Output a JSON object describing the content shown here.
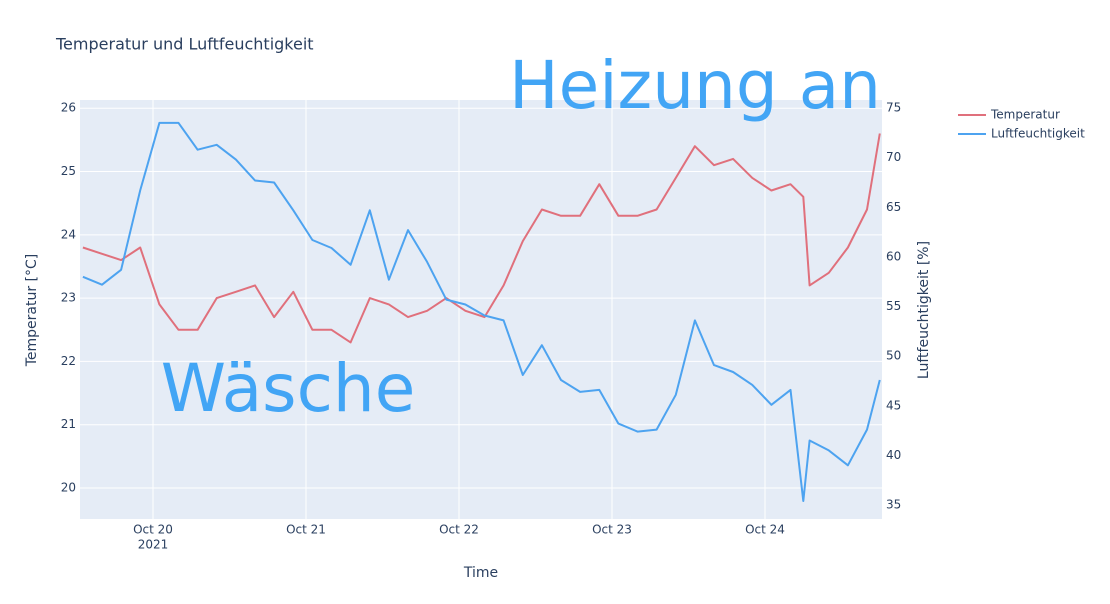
{
  "chart_data": {
    "type": "line",
    "title": "Temperatur und Luftfeuchtigkeit",
    "x_label": "Time",
    "y_label": "Temperatur [°C]",
    "y2_label": "Luftfeuchtigkeit [%]",
    "x_year_label": "2021",
    "annotations": [
      "Heizung an",
      "Wäsche"
    ],
    "annotation_color": "#42a5f5",
    "x": [
      "2021-10-19T13:00",
      "2021-10-19T16:00",
      "2021-10-19T19:00",
      "2021-10-19T22:00",
      "2021-10-20T01:00",
      "2021-10-20T04:00",
      "2021-10-20T07:00",
      "2021-10-20T10:00",
      "2021-10-20T13:00",
      "2021-10-20T16:00",
      "2021-10-20T19:00",
      "2021-10-20T22:00",
      "2021-10-21T01:00",
      "2021-10-21T04:00",
      "2021-10-21T07:00",
      "2021-10-21T10:00",
      "2021-10-21T13:00",
      "2021-10-21T16:00",
      "2021-10-21T19:00",
      "2021-10-21T22:00",
      "2021-10-22T01:00",
      "2021-10-22T04:00",
      "2021-10-22T07:00",
      "2021-10-22T10:00",
      "2021-10-22T13:00",
      "2021-10-22T16:00",
      "2021-10-22T19:00",
      "2021-10-22T22:00",
      "2021-10-23T01:00",
      "2021-10-23T04:00",
      "2021-10-23T07:00",
      "2021-10-23T10:00",
      "2021-10-23T13:00",
      "2021-10-23T16:00",
      "2021-10-23T19:00",
      "2021-10-23T22:00",
      "2021-10-24T01:00",
      "2021-10-24T04:00",
      "2021-10-24T06:00",
      "2021-10-24T07:00",
      "2021-10-24T10:00",
      "2021-10-24T13:00",
      "2021-10-24T16:00",
      "2021-10-24T18:00"
    ],
    "series": [
      {
        "name": "Temperatur",
        "color": "#e0707c",
        "values": [
          23.8,
          23.7,
          23.6,
          23.8,
          22.9,
          22.5,
          22.5,
          23.0,
          23.1,
          23.2,
          22.7,
          23.1,
          22.5,
          22.5,
          22.3,
          23.0,
          22.9,
          22.7,
          22.8,
          23.0,
          22.8,
          22.7,
          23.2,
          23.9,
          24.4,
          24.3,
          24.3,
          24.8,
          24.3,
          24.3,
          24.4,
          24.9,
          25.4,
          25.1,
          25.2,
          24.9,
          24.7,
          24.8,
          24.6,
          23.2,
          23.4,
          23.8,
          24.4,
          25.6
        ]
      },
      {
        "name": "Luftfeuchtigkeit",
        "color": "#4da3f0",
        "axis": "y2",
        "values": [
          58,
          57.2,
          58.7,
          66.7,
          73.5,
          73.5,
          70.8,
          71.3,
          69.8,
          67.7,
          67.5,
          64.7,
          61.7,
          60.9,
          59.2,
          64.7,
          57.7,
          62.7,
          59.5,
          55.7,
          55.2,
          54.1,
          53.6,
          48.1,
          51.1,
          47.6,
          46.4,
          46.6,
          43.2,
          42.4,
          42.6,
          46.1,
          53.6,
          49.1,
          48.4,
          47.1,
          45.1,
          46.6,
          35.4,
          41.5,
          40.5,
          39.0,
          42.6,
          47.6
        ]
      }
    ],
    "xlim": [
      "2021-10-19T12:33",
      "2021-10-24T18:21"
    ],
    "xticks": [
      {
        "value": "2021-10-20T00:00",
        "label": "Oct 20"
      },
      {
        "value": "2021-10-21T00:00",
        "label": "Oct 21"
      },
      {
        "value": "2021-10-22T00:00",
        "label": "Oct 22"
      },
      {
        "value": "2021-10-23T00:00",
        "label": "Oct 23"
      },
      {
        "value": "2021-10-24T00:00",
        "label": "Oct 24"
      }
    ],
    "ylim": [
      19.51,
      26.13
    ],
    "yticks": [
      20,
      21,
      22,
      23,
      24,
      25,
      26
    ],
    "y2lim": [
      33.59,
      75.81
    ],
    "y2ticks": [
      35,
      40,
      45,
      50,
      55,
      60,
      65,
      70,
      75
    ],
    "grid": true,
    "legend": "right"
  }
}
